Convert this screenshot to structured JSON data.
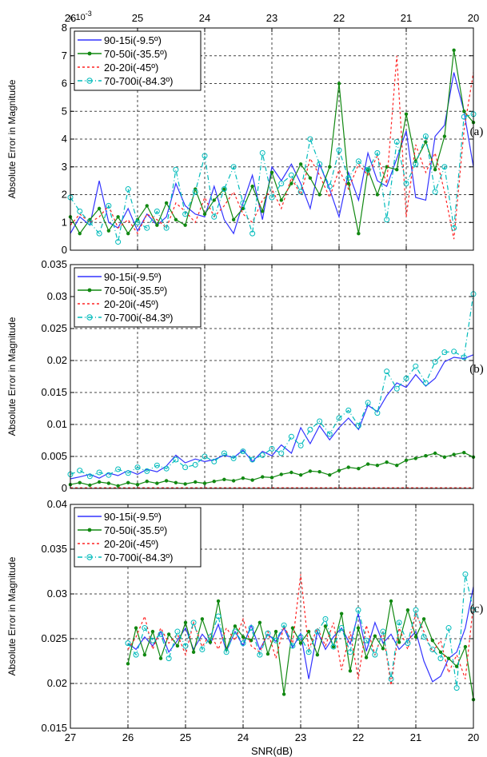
{
  "chart_data": [
    {
      "type": "line",
      "panel_tag": "(a)",
      "exponent_label": "x 10",
      "exponent_sup": "-3",
      "ylabel": "Absolute Error in Magnitude",
      "xlabel": "",
      "ylim": [
        0,
        8
      ],
      "yticks": [
        "0",
        "1",
        "2",
        "3",
        "4",
        "5",
        "6",
        "7",
        "8"
      ],
      "xlim": [
        20,
        26
      ],
      "top_ticks": [
        "26",
        "25",
        "24",
        "23",
        "22",
        "21",
        "20"
      ],
      "bottom_ticks": [],
      "grid": true,
      "legend_position": "top-left",
      "x": [
        26.0,
        25.86,
        25.71,
        25.57,
        25.43,
        25.29,
        25.14,
        25.0,
        24.86,
        24.71,
        24.57,
        24.43,
        24.29,
        24.14,
        24.0,
        23.86,
        23.71,
        23.57,
        23.43,
        23.29,
        23.14,
        23.0,
        22.86,
        22.71,
        22.57,
        22.43,
        22.29,
        22.14,
        22.0,
        21.86,
        21.71,
        21.57,
        21.43,
        21.29,
        21.14,
        21.0,
        20.86,
        20.71,
        20.57,
        20.43,
        20.29,
        20.14,
        20.0
      ],
      "series": [
        {
          "name": "90-15i(-9.5º)",
          "color": "#3333ff",
          "dash": "",
          "values": [
            0.6,
            1.2,
            0.9,
            2.5,
            1.0,
            0.8,
            1.5,
            0.7,
            1.3,
            0.9,
            1.2,
            2.4,
            1.6,
            1.3,
            1.2,
            2.3,
            1.1,
            0.6,
            1.7,
            2.7,
            1.1,
            3.0,
            2.5,
            3.1,
            2.4,
            1.5,
            3.1,
            2.2,
            1.2,
            2.8,
            1.8,
            3.5,
            2.5,
            2.3,
            3.3,
            4.3,
            1.9,
            1.8,
            4.1,
            4.5,
            6.4,
            5.0,
            3.0
          ]
        },
        {
          "name": "70-50i(-35.5º)",
          "color": "#118811",
          "dash": "",
          "values": [
            1.2,
            0.6,
            1.1,
            1.5,
            0.7,
            1.2,
            0.6,
            1.1,
            1.6,
            0.9,
            1.7,
            1.1,
            0.9,
            2.2,
            1.3,
            1.8,
            2.2,
            1.1,
            1.5,
            2.3,
            1.4,
            2.8,
            1.8,
            2.4,
            3.1,
            2.6,
            2.0,
            3.0,
            6.0,
            2.4,
            0.6,
            2.9,
            2.0,
            3.0,
            2.9,
            4.9,
            3.2,
            3.9,
            2.9,
            4.1,
            7.2,
            5.0,
            4.6
          ]
        },
        {
          "name": "20-20i(-45º)",
          "color": "#ff2222",
          "dash": "3,3",
          "values": [
            0.9,
            1.3,
            1.0,
            1.2,
            1.6,
            0.8,
            1.1,
            0.6,
            1.3,
            1.1,
            0.8,
            1.7,
            1.4,
            1.0,
            1.9,
            1.2,
            1.6,
            2.1,
            1.3,
            1.0,
            1.8,
            2.2,
            1.5,
            2.6,
            2.0,
            3.3,
            2.7,
            1.9,
            2.9,
            2.2,
            3.1,
            2.7,
            3.4,
            2.4,
            7.0,
            1.2,
            3.8,
            2.8,
            3.5,
            2.1,
            0.4,
            4.3,
            6.4
          ]
        },
        {
          "name": "70-700i(-84.3º)",
          "color": "#00bbbb",
          "dash": "6,3,1,3",
          "values": [
            1.9,
            1.4,
            1.0,
            0.6,
            1.6,
            0.3,
            2.2,
            1.0,
            0.8,
            1.4,
            0.8,
            2.9,
            1.3,
            2.1,
            3.4,
            1.2,
            2.2,
            3.0,
            1.7,
            0.6,
            3.5,
            1.9,
            2.4,
            2.7,
            2.1,
            4.0,
            3.1,
            2.3,
            3.6,
            2.6,
            3.2,
            2.9,
            3.5,
            1.1,
            3.9,
            2.4,
            3.1,
            4.1,
            2.1,
            3.0,
            0.8,
            4.8,
            4.9
          ]
        }
      ]
    },
    {
      "type": "line",
      "panel_tag": "(b)",
      "ylabel": "Absolute Error in Magnitude",
      "xlabel": "",
      "ylim": [
        0,
        0.035
      ],
      "yticks": [
        "0",
        "0.005",
        "0.01",
        "0.015",
        "0.02",
        "0.025",
        "0.03",
        "0.035"
      ],
      "xlim": [
        20,
        26
      ],
      "grid": true,
      "legend_position": "top-left",
      "x": [
        26.0,
        25.86,
        25.71,
        25.57,
        25.43,
        25.29,
        25.14,
        25.0,
        24.86,
        24.71,
        24.57,
        24.43,
        24.29,
        24.14,
        24.0,
        23.86,
        23.71,
        23.57,
        23.43,
        23.29,
        23.14,
        23.0,
        22.86,
        22.71,
        22.57,
        22.43,
        22.29,
        22.14,
        22.0,
        21.86,
        21.71,
        21.57,
        21.43,
        21.29,
        21.14,
        21.0,
        20.86,
        20.71,
        20.57,
        20.43,
        20.29,
        20.14,
        20.0
      ],
      "series": [
        {
          "name": "90-15i(-9.5º)",
          "color": "#3333ff",
          "dash": "",
          "values": [
            0.0015,
            0.0018,
            0.0022,
            0.0016,
            0.0024,
            0.002,
            0.0028,
            0.0022,
            0.003,
            0.0026,
            0.0035,
            0.0052,
            0.004,
            0.0046,
            0.0042,
            0.0045,
            0.0052,
            0.0048,
            0.006,
            0.0042,
            0.0058,
            0.0051,
            0.0068,
            0.0055,
            0.0095,
            0.007,
            0.0098,
            0.0076,
            0.0095,
            0.011,
            0.0092,
            0.013,
            0.012,
            0.0145,
            0.0165,
            0.0158,
            0.0178,
            0.016,
            0.0172,
            0.0198,
            0.0205,
            0.0203,
            0.0209
          ]
        },
        {
          "name": "70-50i(-35.5º)",
          "color": "#118811",
          "dash": "",
          "values": [
            0.0006,
            0.0009,
            0.0005,
            0.001,
            0.0008,
            0.0004,
            0.0009,
            0.0006,
            0.0011,
            0.0008,
            0.0012,
            0.0009,
            0.0007,
            0.001,
            0.0008,
            0.0011,
            0.0014,
            0.0012,
            0.0016,
            0.0013,
            0.0018,
            0.0017,
            0.0022,
            0.0025,
            0.0021,
            0.0027,
            0.0026,
            0.0021,
            0.0028,
            0.0033,
            0.0031,
            0.0038,
            0.0036,
            0.0041,
            0.0036,
            0.0044,
            0.0047,
            0.0051,
            0.0055,
            0.0049,
            0.0053,
            0.0056,
            0.0049
          ]
        },
        {
          "name": "20-20i(-45º)",
          "color": "#ff2222",
          "dash": "3,3",
          "values": [
            0.0001,
            0.0001,
            0.0001,
            0.0001,
            0.0001,
            0.0001,
            0.0001,
            0.0001,
            0.0001,
            0.0001,
            0.0001,
            0.0001,
            0.0001,
            0.0001,
            0.0001,
            0.0001,
            0.0001,
            0.0001,
            0.0001,
            0.0001,
            0.0001,
            0.0001,
            0.0001,
            0.0001,
            0.0001,
            0.0001,
            0.0001,
            0.0001,
            0.0001,
            0.0001,
            0.0001,
            0.0001,
            0.0001,
            0.0001,
            0.0001,
            0.0001,
            0.0001,
            0.0001,
            0.0001,
            0.0001,
            0.0001,
            0.0001,
            0.0001
          ]
        },
        {
          "name": "70-700i(-84.3º)",
          "color": "#00bbbb",
          "dash": "6,3,1,3",
          "values": [
            0.0022,
            0.0028,
            0.0019,
            0.0025,
            0.0021,
            0.003,
            0.0024,
            0.0033,
            0.0027,
            0.0036,
            0.0031,
            0.0045,
            0.0033,
            0.0037,
            0.005,
            0.0042,
            0.0055,
            0.0047,
            0.0058,
            0.0045,
            0.0052,
            0.0062,
            0.0055,
            0.0081,
            0.0067,
            0.0092,
            0.0105,
            0.0085,
            0.011,
            0.0122,
            0.0098,
            0.0134,
            0.0118,
            0.0183,
            0.0156,
            0.0172,
            0.0191,
            0.0165,
            0.0198,
            0.0213,
            0.0214,
            0.0205,
            0.0304
          ]
        }
      ]
    },
    {
      "type": "line",
      "panel_tag": "(c)",
      "ylabel": "Absolute Error in Magnitude",
      "xlabel": "SNR(dB)",
      "ylim": [
        0.015,
        0.04
      ],
      "yticks": [
        "0.015",
        "0.02",
        "0.025",
        "0.03",
        "0.035",
        "0.04"
      ],
      "xlim": [
        20,
        27
      ],
      "bottom_ticks": [
        "27",
        "26",
        "25",
        "24",
        "23",
        "22",
        "21",
        "20"
      ],
      "grid": true,
      "legend_position": "top-left",
      "x": [
        26.0,
        25.86,
        25.71,
        25.57,
        25.43,
        25.29,
        25.14,
        25.0,
        24.86,
        24.71,
        24.57,
        24.43,
        24.29,
        24.14,
        24.0,
        23.86,
        23.71,
        23.57,
        23.43,
        23.29,
        23.14,
        23.0,
        22.86,
        22.71,
        22.57,
        22.43,
        22.29,
        22.14,
        22.0,
        21.86,
        21.71,
        21.57,
        21.43,
        21.29,
        21.14,
        21.0,
        20.86,
        20.71,
        20.57,
        20.43,
        20.29,
        20.14,
        20.0
      ],
      "series": [
        {
          "name": "90-15i(-9.5º)",
          "color": "#3333ff",
          "dash": "",
          "values": [
            0.0245,
            0.0238,
            0.0252,
            0.0242,
            0.0258,
            0.0235,
            0.0248,
            0.0262,
            0.0238,
            0.0255,
            0.0244,
            0.0266,
            0.0236,
            0.0258,
            0.0242,
            0.0265,
            0.0238,
            0.0255,
            0.0247,
            0.0262,
            0.024,
            0.0256,
            0.0205,
            0.0258,
            0.0238,
            0.0252,
            0.0262,
            0.0244,
            0.0278,
            0.0236,
            0.0268,
            0.0245,
            0.0255,
            0.0238,
            0.0248,
            0.0258,
            0.0225,
            0.0202,
            0.0208,
            0.0228,
            0.0235,
            0.0262,
            0.0308
          ]
        },
        {
          "name": "70-50i(-35.5º)",
          "color": "#118811",
          "dash": "",
          "values": [
            0.0222,
            0.0262,
            0.0232,
            0.0258,
            0.0228,
            0.0255,
            0.0242,
            0.0268,
            0.0235,
            0.0272,
            0.0246,
            0.0292,
            0.0238,
            0.0264,
            0.0252,
            0.0248,
            0.0268,
            0.0233,
            0.0258,
            0.0188,
            0.0262,
            0.0245,
            0.0258,
            0.0232,
            0.0264,
            0.0241,
            0.0278,
            0.0214,
            0.0262,
            0.0229,
            0.0253,
            0.0239,
            0.0292,
            0.0246,
            0.0282,
            0.0252,
            0.0272,
            0.0248,
            0.0235,
            0.0228,
            0.0219,
            0.0241,
            0.0182
          ]
        },
        {
          "name": "20-20i(-45º)",
          "color": "#ff2222",
          "dash": "3,3",
          "values": [
            0.0238,
            0.0252,
            0.0275,
            0.0238,
            0.0262,
            0.0245,
            0.0255,
            0.0232,
            0.0268,
            0.0241,
            0.0256,
            0.0238,
            0.0262,
            0.0248,
            0.0272,
            0.0242,
            0.0235,
            0.0258,
            0.0228,
            0.0264,
            0.0245,
            0.0322,
            0.0238,
            0.0262,
            0.0242,
            0.0268,
            0.0215,
            0.0258,
            0.0205,
            0.0265,
            0.0232,
            0.0258,
            0.0198,
            0.0262,
            0.0238,
            0.0278,
            0.0258,
            0.0235,
            0.0248,
            0.0212,
            0.0232,
            0.0205,
            0.0288
          ]
        },
        {
          "name": "70-700i(-84.3º)",
          "color": "#00bbbb",
          "dash": "6,3,1,3",
          "values": [
            0.0245,
            0.0232,
            0.0262,
            0.0248,
            0.0255,
            0.0228,
            0.0258,
            0.0242,
            0.0268,
            0.0238,
            0.0252,
            0.0275,
            0.0235,
            0.0258,
            0.0245,
            0.0262,
            0.0232,
            0.0256,
            0.0248,
            0.0265,
            0.0242,
            0.0252,
            0.0235,
            0.0258,
            0.0272,
            0.0241,
            0.0262,
            0.0235,
            0.0282,
            0.0248,
            0.0232,
            0.0258,
            0.0205,
            0.0268,
            0.0245,
            0.0282,
            0.0252,
            0.0238,
            0.0228,
            0.0262,
            0.0195,
            0.0322,
            0.0282
          ]
        }
      ]
    }
  ]
}
